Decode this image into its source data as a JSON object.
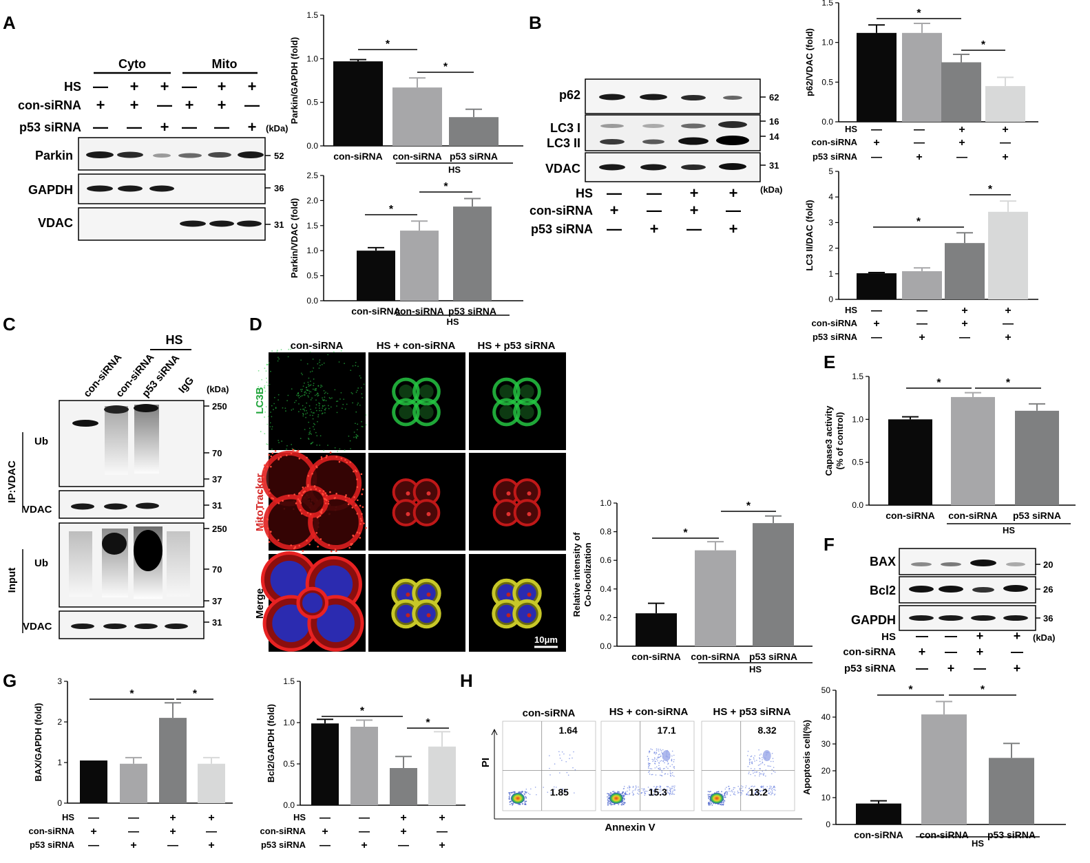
{
  "panels": [
    "A",
    "B",
    "C",
    "D",
    "E",
    "F",
    "G",
    "H"
  ],
  "colors": {
    "black": "#0a0a0a",
    "grey1": "#a7a7a9",
    "grey2": "#7f8081",
    "grey3": "#d8d9d9"
  },
  "blots": {
    "A": {
      "groups": [
        "Cyto",
        "Mito"
      ],
      "rows": [
        "HS",
        "con-siRNA",
        "p53 siRNA"
      ],
      "bands": [
        "Parkin",
        "GAPDH",
        "VDAC"
      ],
      "markers": [
        "52",
        "36",
        "31"
      ],
      "kda": "(kDa)"
    },
    "B": {
      "bands": [
        "p62",
        "LC3 I",
        "LC3 II",
        "VDAC"
      ],
      "markers": [
        "62",
        "16",
        "14",
        "31"
      ],
      "rows": [
        "HS",
        "con-siRNA",
        "p53 siRNA"
      ],
      "kda": "(kDa)"
    },
    "C": {
      "lanes": [
        "con-siRNA",
        "con-siRNA",
        "p53 siRNA",
        "IgG"
      ],
      "hs": "HS",
      "kda": "(kDa)",
      "ip": "IP:VDAC",
      "input": "Input",
      "ub": "Ub",
      "vdac": "VDAC",
      "markers": [
        "250",
        "70",
        "37",
        "31",
        "250",
        "70",
        "37",
        "31"
      ]
    },
    "F": {
      "bands": [
        "BAX",
        "Bcl2",
        "GAPDH"
      ],
      "markers": [
        "20",
        "26",
        "36"
      ],
      "rows": [
        "HS",
        "con-siRNA",
        "p53 siRNA"
      ],
      "kda": "(kDa)"
    }
  },
  "signs": {
    "plus": "+",
    "minus": "—"
  },
  "microscopy": {
    "columns": [
      "con-siRNA",
      "HS + con-siRNA",
      "HS + p53 siRNA"
    ],
    "rows": [
      "LC3B",
      "MitoTracker",
      "Merge"
    ],
    "scalebar": "10μm"
  },
  "flow": {
    "columns": [
      "con-siRNA",
      "HS + con-siRNA",
      "HS + p53 siRNA"
    ],
    "q2": [
      "1.64",
      "17.1",
      "8.32"
    ],
    "q3": [
      "1.85",
      "15.3",
      "13.2"
    ],
    "xlabel": "Annexin V",
    "ylabel": "PI"
  },
  "chart_data": [
    {
      "id": "A-top",
      "type": "bar",
      "ylabel": "Parkin/GAPDH (fold)",
      "categories": [
        "con-siRNA",
        "con-siRNA",
        "p53 siRNA"
      ],
      "group_label": "HS",
      "values": [
        0.97,
        0.67,
        0.33
      ],
      "errors": [
        0.02,
        0.11,
        0.09
      ],
      "ylim": [
        0,
        1.5
      ],
      "ticks": [
        "0.0",
        "0.5",
        "1.0",
        "1.5"
      ],
      "sig": [
        "*",
        "*"
      ]
    },
    {
      "id": "A-bottom",
      "type": "bar",
      "ylabel": "Parkin/VDAC (fold)",
      "categories": [
        "con-siRNA",
        "con-siRNA",
        "p53 siRNA"
      ],
      "group_label": "HS",
      "values": [
        1.0,
        1.4,
        1.88
      ],
      "errors": [
        0.06,
        0.19,
        0.16
      ],
      "ylim": [
        0,
        2.5
      ],
      "ticks": [
        "0.0",
        "0.5",
        "1.0",
        "1.5",
        "2.0",
        "2.5"
      ],
      "sig": [
        "*",
        "*"
      ]
    },
    {
      "id": "B-top",
      "type": "bar",
      "ylabel": "p62/VDAC (fold)",
      "values": [
        1.12,
        1.12,
        0.75,
        0.45
      ],
      "errors": [
        0.1,
        0.12,
        0.1,
        0.11
      ],
      "ylim": [
        0,
        1.5
      ],
      "ticks": [
        "0.0",
        "0.5",
        "1.0",
        "1.5"
      ],
      "sig": [
        "*",
        "*"
      ]
    },
    {
      "id": "B-bottom",
      "type": "bar",
      "ylabel": "LC3 II/DAC (fold)",
      "values": [
        1.02,
        1.1,
        2.2,
        3.42
      ],
      "errors": [
        0.03,
        0.13,
        0.4,
        0.42
      ],
      "ylim": [
        0,
        5
      ],
      "ticks": [
        "0",
        "1",
        "2",
        "3",
        "4",
        "5"
      ],
      "sig": [
        "*",
        "*"
      ]
    },
    {
      "id": "D",
      "type": "bar",
      "ylabel": "Relative intensity of Co-locolization",
      "categories": [
        "con-siRNA",
        "con-siRNA",
        "p53 siRNA"
      ],
      "group_label": "HS",
      "values": [
        0.23,
        0.67,
        0.86
      ],
      "errors": [
        0.07,
        0.06,
        0.05
      ],
      "ylim": [
        0,
        1.0
      ],
      "ticks": [
        "0.0",
        "0.2",
        "0.4",
        "0.6",
        "0.8",
        "1.0"
      ],
      "sig": [
        "*",
        "*"
      ]
    },
    {
      "id": "E",
      "type": "bar",
      "ylabel": "Capase3 activity (% of control)",
      "categories": [
        "con-siRNA",
        "con-siRNA",
        "p53 siRNA"
      ],
      "group_label": "HS",
      "values": [
        1.0,
        1.26,
        1.1
      ],
      "errors": [
        0.03,
        0.05,
        0.08
      ],
      "ylim": [
        0,
        1.5
      ],
      "ticks": [
        "0.0",
        "0.5",
        "1.0",
        "1.5"
      ],
      "sig": [
        "*",
        "*"
      ]
    },
    {
      "id": "G-left",
      "type": "bar",
      "ylabel": "BAX/GAPDH (fold)",
      "values": [
        1.05,
        0.97,
        2.1,
        0.97
      ],
      "errors": [
        0.0,
        0.15,
        0.37,
        0.15
      ],
      "ylim": [
        0,
        3
      ],
      "ticks": [
        "0",
        "1",
        "2",
        "3"
      ],
      "sig": [
        "*",
        "*"
      ]
    },
    {
      "id": "G-right",
      "type": "bar",
      "ylabel": "Bcl2/GAPDH (fold)",
      "values": [
        0.99,
        0.95,
        0.45,
        0.71
      ],
      "errors": [
        0.05,
        0.08,
        0.14,
        0.18
      ],
      "ylim": [
        0,
        1.5
      ],
      "ticks": [
        "0.0",
        "0.5",
        "1.0",
        "1.5"
      ],
      "sig": [
        "*",
        "*"
      ]
    },
    {
      "id": "H",
      "type": "bar",
      "ylabel": "Apoptosis cell(%)",
      "categories": [
        "con-siRNA",
        "con-siRNA",
        "p53 siRNA"
      ],
      "group_label": "HS",
      "values": [
        7.8,
        41.0,
        24.8
      ],
      "errors": [
        1.0,
        4.8,
        5.4
      ],
      "ylim": [
        0,
        50
      ],
      "ticks": [
        "0",
        "10",
        "20",
        "30",
        "40",
        "50"
      ],
      "sig": [
        "*",
        "*"
      ]
    }
  ]
}
